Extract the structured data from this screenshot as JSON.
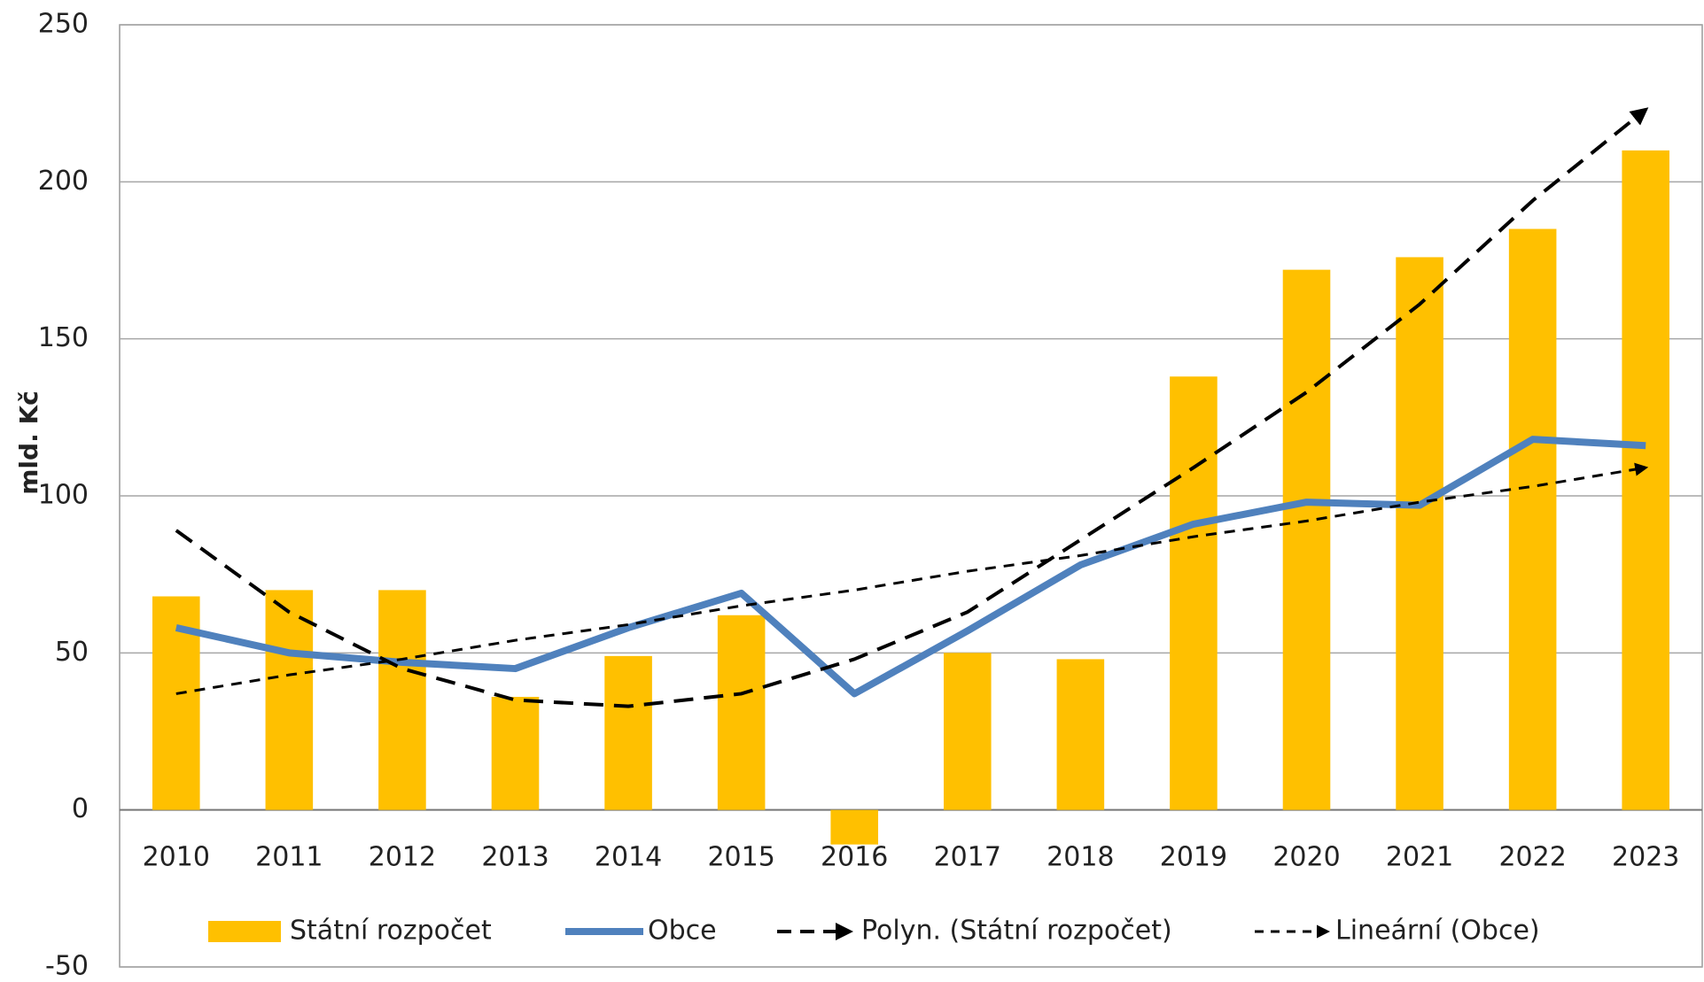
{
  "chart_data": {
    "type": "bar",
    "y_label": "mld. Kč",
    "categories": [
      "2010",
      "2011",
      "2012",
      "2013",
      "2014",
      "2015",
      "2016",
      "2017",
      "2018",
      "2019",
      "2020",
      "2021",
      "2022",
      "2023"
    ],
    "series": [
      {
        "name": "Státní rozpočet",
        "type": "bar",
        "color": "#ffc000",
        "values": [
          68,
          70,
          70,
          36,
          49,
          62,
          -11,
          50,
          48,
          138,
          172,
          176,
          185,
          210
        ]
      },
      {
        "name": "Obce",
        "type": "line",
        "color": "#4f81bd",
        "values": [
          58,
          50,
          47,
          45,
          58,
          69,
          37,
          57,
          78,
          91,
          98,
          97,
          118,
          116
        ]
      },
      {
        "name": "Polyn. (Státní rozpočet)",
        "type": "trendline",
        "color": "#000000",
        "values": [
          89,
          63,
          45,
          35,
          33,
          37,
          48,
          63,
          86,
          109,
          133,
          161,
          194,
          223
        ]
      },
      {
        "name": "Lineární (Obce)",
        "type": "trendline",
        "color": "#000000",
        "values": [
          37,
          43,
          48,
          54,
          59,
          65,
          70,
          76,
          81,
          87,
          92,
          98,
          103,
          109
        ]
      }
    ],
    "ylim": [
      -50,
      250
    ],
    "yticks": [
      -50,
      0,
      50,
      100,
      150,
      200,
      250
    ],
    "grid": true,
    "legend": "bottom"
  }
}
